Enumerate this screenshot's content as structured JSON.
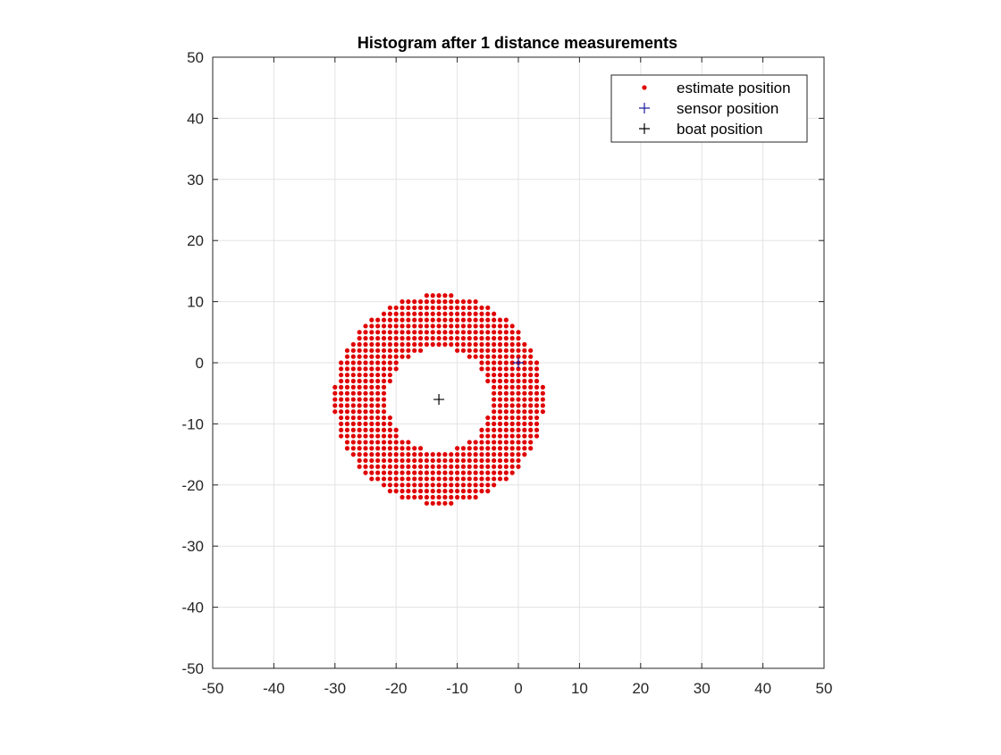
{
  "chart_data": {
    "type": "scatter",
    "title": "Histogram after 1  distance measurements",
    "xlabel": "",
    "ylabel": "",
    "xlim": [
      -50,
      50
    ],
    "ylim": [
      -50,
      50
    ],
    "xticks": [
      -50,
      -40,
      -30,
      -20,
      -10,
      0,
      10,
      20,
      30,
      40,
      50
    ],
    "yticks": [
      -50,
      -40,
      -30,
      -20,
      -10,
      0,
      10,
      20,
      30,
      40,
      50
    ],
    "grid": true,
    "legend_position": "top-right",
    "colors": {
      "estimate": "#e00000",
      "sensor": "#1a1aa0",
      "boat": "#000000",
      "grid": "#e3e3e3",
      "axis": "#262626"
    },
    "legend": [
      {
        "key": "estimate",
        "label": "estimate position",
        "marker": "dot"
      },
      {
        "key": "sensor",
        "label": "sensor position",
        "marker": "plus"
      },
      {
        "key": "boat",
        "label": "boat position",
        "marker": "plus"
      }
    ],
    "series": [
      {
        "key": "estimate",
        "name": "estimate position",
        "marker": "dot",
        "distribution": {
          "kind": "annulus-grid",
          "center": [
            -13,
            -6
          ],
          "inner_radius": 8.5,
          "outer_radius": 17.2,
          "x_range": [
            -30,
            4
          ],
          "y_range": [
            -23,
            11
          ],
          "step": 1
        }
      },
      {
        "key": "sensor",
        "name": "sensor position",
        "marker": "plus",
        "points": [
          [
            0,
            0
          ]
        ]
      },
      {
        "key": "boat",
        "name": "boat position",
        "marker": "plus",
        "points": [
          [
            -13,
            -6
          ]
        ]
      }
    ]
  }
}
